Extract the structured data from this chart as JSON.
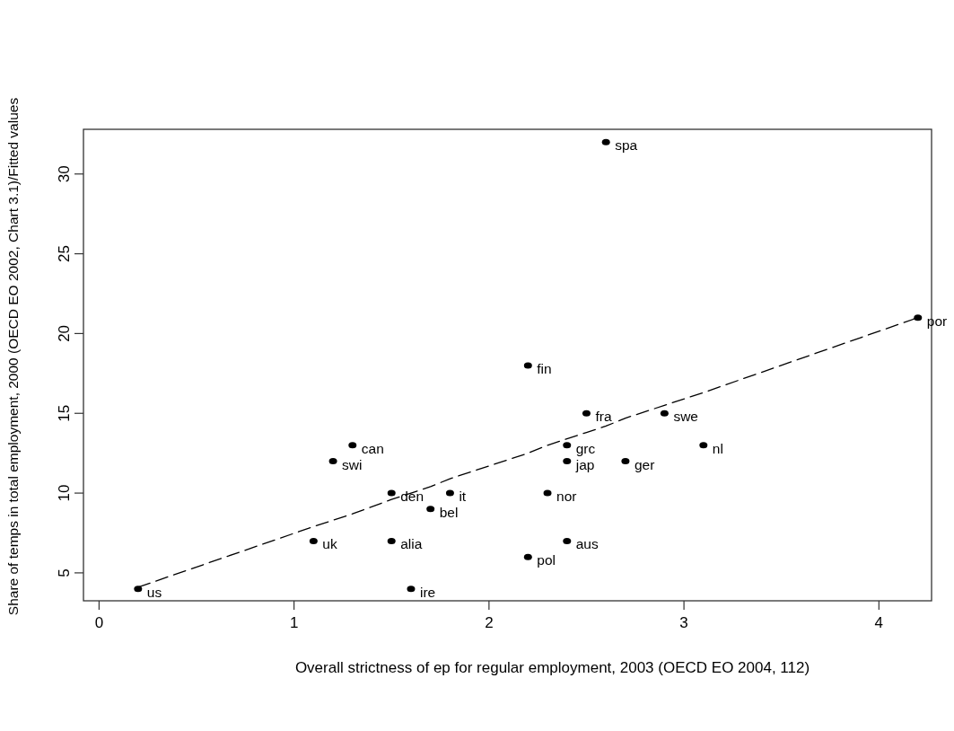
{
  "chart_data": {
    "type": "scatter",
    "xlabel": "Overall strictness of ep for regular employment, 2003 (OECD EO 2004, 112)",
    "ylabel": "Share of temps in total employment, 2000 (OECD EO 2002, Chart 3.1)/Fitted values",
    "xlim": [
      -0.08,
      4.27
    ],
    "xticks": [
      0,
      1,
      2,
      3,
      4
    ],
    "ylim": [
      3.25,
      32.8
    ],
    "yticks": [
      5,
      10,
      15,
      20,
      25,
      30
    ],
    "grid": false,
    "series": [
      {
        "color": "#000000",
        "marker": "circle",
        "x": [
          0.2,
          1.1,
          1.5,
          1.6,
          1.2,
          1.3,
          1.5,
          1.8,
          1.7,
          2.2,
          2.6,
          2.2,
          2.3,
          2.4,
          2.4,
          2.4,
          2.5,
          2.7,
          2.9,
          3.1,
          4.2
        ],
        "values": [
          4,
          7,
          7,
          4,
          12,
          13,
          10,
          10,
          9,
          18,
          32,
          6,
          10,
          7,
          12,
          13,
          15,
          12,
          15,
          13,
          21
        ]
      },
      {
        "type": "line",
        "color": "#000000",
        "marker": "none",
        "line_style": "dashed",
        "x": [
          0.2,
          1.1,
          1.2,
          1.3,
          1.5,
          1.6,
          1.7,
          1.8,
          2.2,
          2.3,
          2.4,
          2.5,
          2.6,
          2.7,
          2.9,
          3.1,
          4.2
        ],
        "values": [
          4.1,
          7.9,
          8.3,
          8.7,
          9.6,
          10.0,
          10.4,
          10.9,
          12.5,
          13.0,
          13.4,
          13.8,
          14.2,
          14.7,
          15.5,
          16.3,
          21.0
        ]
      }
    ],
    "annotations": [
      {
        "text": "us",
        "x": 0.2,
        "y": 4
      },
      {
        "text": "uk",
        "x": 1.1,
        "y": 7
      },
      {
        "text": "alia",
        "x": 1.5,
        "y": 7
      },
      {
        "text": "ire",
        "x": 1.6,
        "y": 4
      },
      {
        "text": "swi",
        "x": 1.2,
        "y": 12
      },
      {
        "text": "can",
        "x": 1.3,
        "y": 13
      },
      {
        "text": "den",
        "x": 1.5,
        "y": 10
      },
      {
        "text": "it",
        "x": 1.8,
        "y": 10
      },
      {
        "text": "bel",
        "x": 1.7,
        "y": 9
      },
      {
        "text": "fin",
        "x": 2.2,
        "y": 18
      },
      {
        "text": "spa",
        "x": 2.6,
        "y": 32
      },
      {
        "text": "pol",
        "x": 2.2,
        "y": 6
      },
      {
        "text": "nor",
        "x": 2.3,
        "y": 10
      },
      {
        "text": "aus",
        "x": 2.4,
        "y": 7
      },
      {
        "text": "jap",
        "x": 2.4,
        "y": 12
      },
      {
        "text": "grc",
        "x": 2.4,
        "y": 13
      },
      {
        "text": "fra",
        "x": 2.5,
        "y": 15
      },
      {
        "text": "ger",
        "x": 2.7,
        "y": 12
      },
      {
        "text": "swe",
        "x": 2.9,
        "y": 15
      },
      {
        "text": "nl",
        "x": 3.1,
        "y": 13
      },
      {
        "text": "por",
        "x": 4.2,
        "y": 21
      }
    ]
  }
}
